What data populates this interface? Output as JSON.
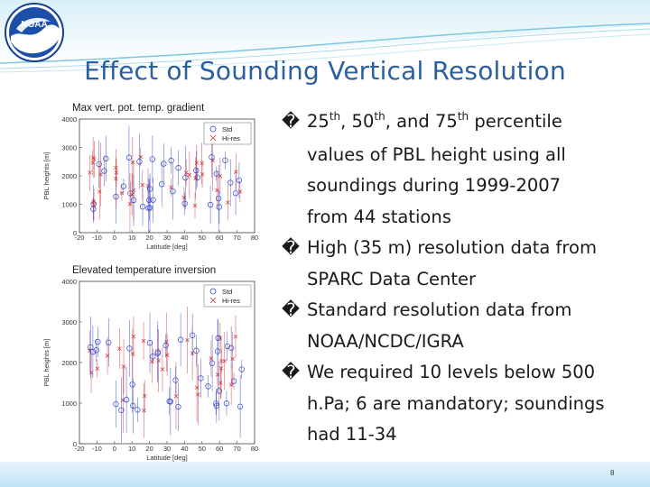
{
  "slide": {
    "title": "Effect of Sounding Vertical Resolution",
    "page_number": "8",
    "logo_text": "NOAA"
  },
  "figure1": {
    "caption": "Max vert. pot. temp. gradient",
    "ylabel": "PBL heights [m]",
    "xlabel": "Latitude [deg]",
    "yticks": [
      "0",
      "1000",
      "2000",
      "3000",
      "4000"
    ],
    "xticks": [
      "-20",
      "-10",
      "0",
      "10",
      "20",
      "30",
      "40",
      "50",
      "60",
      "70",
      "80"
    ],
    "legend": [
      "Std",
      "Hi-res"
    ]
  },
  "figure2": {
    "caption": "Elevated temperature inversion",
    "ylabel": "PBL heights [m]",
    "xlabel": "Latitude [deg]",
    "yticks": [
      "0",
      "1000",
      "2000",
      "3000",
      "4000"
    ],
    "xticks": [
      "-20",
      "-10",
      "0",
      "10",
      "20",
      "30",
      "40",
      "50",
      "60",
      "70",
      "80"
    ],
    "legend": [
      "Std",
      "Hi-res"
    ]
  },
  "bullets": {
    "marker": "�",
    "b1": {
      "n1": "25",
      "s1": "th",
      "sep1": ", ",
      "n2": "50",
      "s2": "th",
      "sep2": ", and ",
      "n3": "75",
      "s3": "th",
      "rest": " percentile",
      "line2": "values of PBL height using  all",
      "line3": "soundings during 1999-2007",
      "line4": "from 44 stations"
    },
    "b2": {
      "line1": "High (35 m) resolution data from",
      "line2": "SPARC Data Center"
    },
    "b3": {
      "line1": "Standard resolution data from",
      "line2": "NOAA/NCDC/IGRA"
    },
    "b4": {
      "line1": "We required 10 levels below 500",
      "line2": "h.Pa; 6 are mandatory; soundings",
      "line3": "had 11-34"
    }
  },
  "colors": {
    "title": "#2a5fa0",
    "std": "#3344cc",
    "hires": "#cc3333"
  }
}
